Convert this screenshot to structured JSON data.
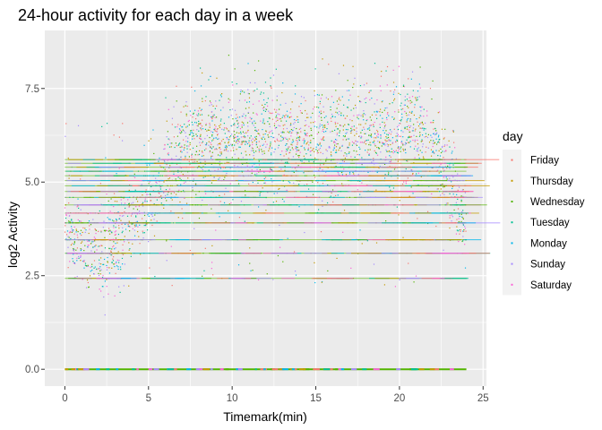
{
  "chart_data": {
    "type": "scatter",
    "title": "24-hour activity for each day in a week",
    "xlabel": "Timemark(min)",
    "ylabel": "log2 Activity",
    "xlim": [
      -1.2,
      25.2
    ],
    "ylim": [
      -0.45,
      9.05
    ],
    "x_ticks": [
      0,
      5,
      10,
      15,
      20,
      25
    ],
    "x_tick_labels": [
      "0",
      "5",
      "10",
      "15",
      "20",
      "25"
    ],
    "y_ticks": [
      0,
      2.5,
      5,
      7.5
    ],
    "y_tick_labels": [
      "0.0",
      "2.5",
      "5.0",
      "7.5"
    ],
    "grid": true,
    "panel_background": "#ebebeb",
    "grid_color": "#ffffff",
    "legend": {
      "title": "day",
      "position": "right",
      "background": "#f2f2f2"
    },
    "floor_value": 0,
    "discrete_levels": [
      2.43,
      3.1,
      3.46,
      3.91,
      4.17,
      4.39,
      4.59,
      4.75,
      4.9,
      5.04,
      5.17,
      5.29,
      5.4,
      5.5,
      5.6
    ],
    "trend": {
      "x": [
        0,
        0.5,
        1,
        1.5,
        2,
        2.5,
        3,
        4,
        5,
        6,
        7,
        8,
        9,
        10,
        12,
        14,
        16,
        18,
        19,
        20,
        21,
        22,
        22.5,
        23,
        23.5,
        24
      ],
      "y": [
        3.9,
        3.6,
        3.3,
        3.1,
        3.15,
        3.3,
        3.6,
        4.0,
        4.5,
        5.0,
        5.6,
        5.95,
        6.0,
        6.05,
        6.05,
        6.0,
        5.95,
        6.05,
        6.1,
        6.2,
        6.15,
        5.9,
        5.6,
        5.0,
        4.4,
        3.9
      ]
    },
    "series": [
      {
        "name": "Friday",
        "color": "#F8766D"
      },
      {
        "name": "Thursday",
        "color": "#C49A00"
      },
      {
        "name": "Wednesday",
        "color": "#53B400"
      },
      {
        "name": "Tuesday",
        "color": "#00C094"
      },
      {
        "name": "Monday",
        "color": "#00B6EB"
      },
      {
        "name": "Sunday",
        "color": "#A58AFF"
      },
      {
        "name": "Saturday",
        "color": "#FB61D7"
      }
    ]
  }
}
